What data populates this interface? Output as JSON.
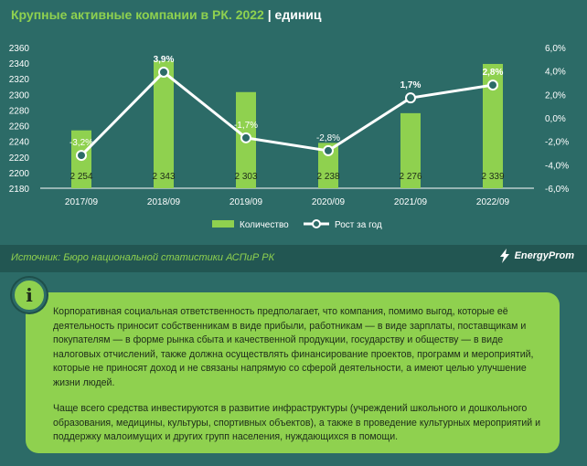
{
  "header": {
    "title": "Крупные активные компании в РК. 2022",
    "separator": "|",
    "unit": "единиц"
  },
  "chart_data": {
    "type": "bar+line",
    "categories": [
      "2017/09",
      "2018/09",
      "2019/09",
      "2020/09",
      "2021/09",
      "2022/09"
    ],
    "series": [
      {
        "name": "Количество",
        "type": "bar",
        "axis": "left",
        "values": [
          2254,
          2343,
          2303,
          2238,
          2276,
          2339
        ],
        "labels": [
          "2 254",
          "2 343",
          "2 303",
          "2 238",
          "2 276",
          "2 339"
        ]
      },
      {
        "name": "Рост за год",
        "type": "line",
        "axis": "right",
        "values": [
          -3.2,
          3.9,
          -1.7,
          -2.8,
          1.7,
          2.8
        ],
        "labels": [
          "-3,2%",
          "3,9%",
          "-1,7%",
          "-2,8%",
          "1,7%",
          "2,8%"
        ]
      }
    ],
    "y_left": {
      "min": 2180,
      "max": 2360,
      "ticks": [
        "2180",
        "2200",
        "2220",
        "2240",
        "2260",
        "2280",
        "2300",
        "2320",
        "2340",
        "2360"
      ]
    },
    "y_right": {
      "min": -6,
      "max": 6,
      "ticks": [
        "-6,0%",
        "-4,0%",
        "-2,0%",
        "0,0%",
        "2,0%",
        "4,0%",
        "6,0%"
      ]
    },
    "legend": [
      "Количество",
      "Рост за год"
    ],
    "legend_position": "bottom"
  },
  "colors": {
    "bar": "#8fd14f",
    "line": "#ffffff",
    "background": "#2c6b67",
    "accent": "#8fd14f"
  },
  "source": {
    "text": "Источник: Бюро национальной статистики АСПиР РК"
  },
  "logo": {
    "text": "EnergyProm",
    "icon": "lightning-bolt-icon"
  },
  "info": {
    "icon": "i",
    "paragraphs": [
      "Корпоративная социальная ответственность предполагает, что компания, помимо выгод, которые её деятельность приносит собственникам в виде прибыли, работникам — в виде зарплаты, поставщикам и покупателям — в форме рынка сбыта и качественной продукции, государству и обществу — в виде налоговых отчислений, также должна осуществлять финансирование проектов, программ и мероприятий, которые не приносят доход и не связаны напрямую со сферой деятельности, а имеют целью улучшение жизни людей.",
      "Чаще всего средства инвестируются в развитие инфраструктуры (учреждений школьного и дошкольного образования, медицины, культуры, спортивных объектов), а также в проведение культурных мероприятий и поддержку малоимущих и других групп населения, нуждающихся в помощи."
    ]
  }
}
